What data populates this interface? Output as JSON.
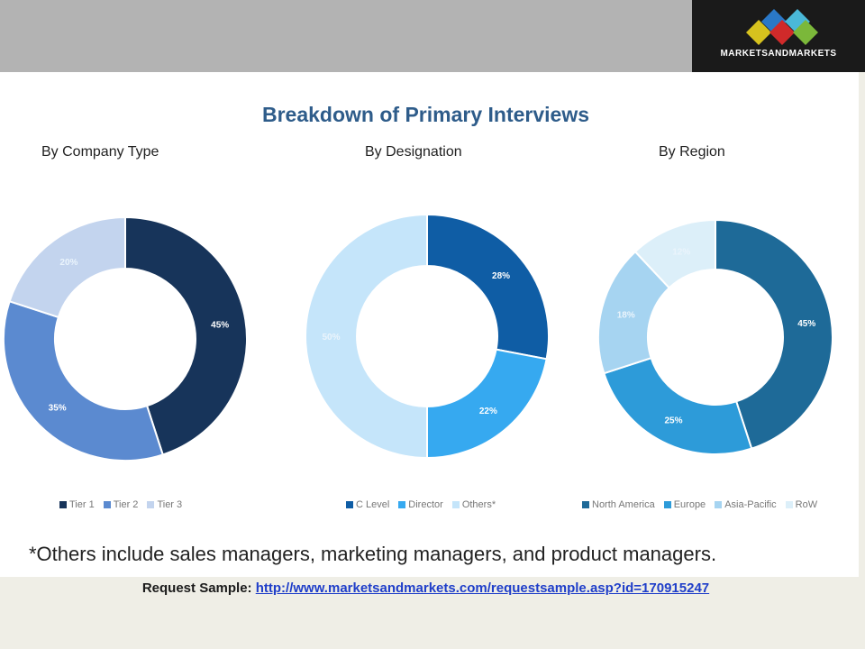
{
  "header": {
    "logo_text": "MARKETSANDMARKETS"
  },
  "chart_data": {
    "title": "Breakdown of Primary Interviews",
    "charts": [
      {
        "type": "pie",
        "subtitle": "By Company Type",
        "slices": [
          {
            "label": "Tier 1",
            "value": 45,
            "color": "#17345a",
            "text": "45%"
          },
          {
            "label": "Tier 2",
            "value": 35,
            "color": "#5b8ad0",
            "text": "35%"
          },
          {
            "label": "Tier 3",
            "value": 20,
            "color": "#c3d4ee",
            "text": "20%"
          }
        ]
      },
      {
        "type": "pie",
        "subtitle": "By Designation",
        "slices": [
          {
            "label": "C Level",
            "value": 28,
            "color": "#0f5da5",
            "text": "28%"
          },
          {
            "label": "Director",
            "value": 22,
            "color": "#36a9f0",
            "text": "22%"
          },
          {
            "label": "Others*",
            "value": 50,
            "color": "#c5e5fa",
            "text": "50%"
          }
        ]
      },
      {
        "type": "pie",
        "subtitle": "By Region",
        "slices": [
          {
            "label": "North America",
            "value": 45,
            "color": "#1e6a98",
            "text": "45%"
          },
          {
            "label": "Europe",
            "value": 25,
            "color": "#2d9bd9",
            "text": "25%"
          },
          {
            "label": "Asia-Pacific",
            "value": 18,
            "color": "#a6d4f1",
            "text": "18%"
          },
          {
            "label": "RoW",
            "value": 12,
            "color": "#dceff9",
            "text": "12%"
          }
        ]
      }
    ]
  },
  "footnote": "*Others include sales managers, marketing managers, and product managers.",
  "request": {
    "label": "Request Sample:",
    "link": "http://www.marketsandmarkets.com/requestsample.asp?id=170915247"
  }
}
